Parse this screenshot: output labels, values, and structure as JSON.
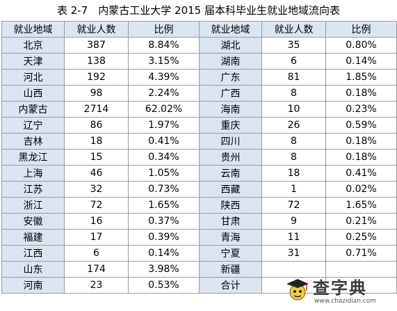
{
  "title": "表 2-7　内蒙古工业大学 2015 届本科毕业生就业地域流向表",
  "headers": [
    "就业地域",
    "就业人数",
    "比例",
    "就业地域",
    "就业人数",
    "比例"
  ],
  "rows": [
    {
      "left": {
        "region": "北京",
        "count": "387",
        "pct": "8.84%"
      },
      "right": {
        "region": "湖北",
        "count": "35",
        "pct": "0.80%"
      }
    },
    {
      "left": {
        "region": "天津",
        "count": "138",
        "pct": "3.15%"
      },
      "right": {
        "region": "湖南",
        "count": "6",
        "pct": "0.14%"
      }
    },
    {
      "left": {
        "region": "河北",
        "count": "192",
        "pct": "4.39%"
      },
      "right": {
        "region": "广东",
        "count": "81",
        "pct": "1.85%"
      }
    },
    {
      "left": {
        "region": "山西",
        "count": "98",
        "pct": "2.24%"
      },
      "right": {
        "region": "广西",
        "count": "8",
        "pct": "0.18%"
      }
    },
    {
      "left": {
        "region": "内蒙古",
        "count": "2714",
        "pct": "62.02%"
      },
      "right": {
        "region": "海南",
        "count": "10",
        "pct": "0.23%"
      }
    },
    {
      "left": {
        "region": "辽宁",
        "count": "86",
        "pct": "1.97%"
      },
      "right": {
        "region": "重庆",
        "count": "26",
        "pct": "0.59%"
      }
    },
    {
      "left": {
        "region": "吉林",
        "count": "18",
        "pct": "0.41%"
      },
      "right": {
        "region": "四川",
        "count": "8",
        "pct": "0.18%"
      }
    },
    {
      "left": {
        "region": "黑龙江",
        "count": "15",
        "pct": "0.34%"
      },
      "right": {
        "region": "贵州",
        "count": "8",
        "pct": "0.18%"
      }
    },
    {
      "left": {
        "region": "上海",
        "count": "46",
        "pct": "1.05%"
      },
      "right": {
        "region": "云南",
        "count": "18",
        "pct": "0.41%"
      }
    },
    {
      "left": {
        "region": "江苏",
        "count": "32",
        "pct": "0.73%"
      },
      "right": {
        "region": "西藏",
        "count": "1",
        "pct": "0.02%"
      }
    },
    {
      "left": {
        "region": "浙江",
        "count": "72",
        "pct": "1.65%"
      },
      "right": {
        "region": "陕西",
        "count": "72",
        "pct": "1.65%"
      }
    },
    {
      "left": {
        "region": "安徽",
        "count": "16",
        "pct": "0.37%"
      },
      "right": {
        "region": "甘肃",
        "count": "9",
        "pct": "0.21%"
      }
    },
    {
      "left": {
        "region": "福建",
        "count": "17",
        "pct": "0.39%"
      },
      "right": {
        "region": "青海",
        "count": "11",
        "pct": "0.25%"
      }
    },
    {
      "left": {
        "region": "江西",
        "count": "6",
        "pct": "0.14%"
      },
      "right": {
        "region": "宁夏",
        "count": "31",
        "pct": "0.71%"
      }
    },
    {
      "left": {
        "region": "山东",
        "count": "174",
        "pct": "3.98%"
      },
      "right": {
        "region": "新疆",
        "count": "",
        "pct": ""
      }
    },
    {
      "left": {
        "region": "河南",
        "count": "23",
        "pct": "0.53%"
      },
      "right": {
        "region": "合计",
        "count": "",
        "pct": ""
      }
    }
  ],
  "watermark": {
    "text": "查字典",
    "url": "www.chazidian.com"
  },
  "colors": {
    "header_bg": "#dbe5f1",
    "region_bg": "#dbe5f1",
    "border": "#9a9a9a"
  }
}
